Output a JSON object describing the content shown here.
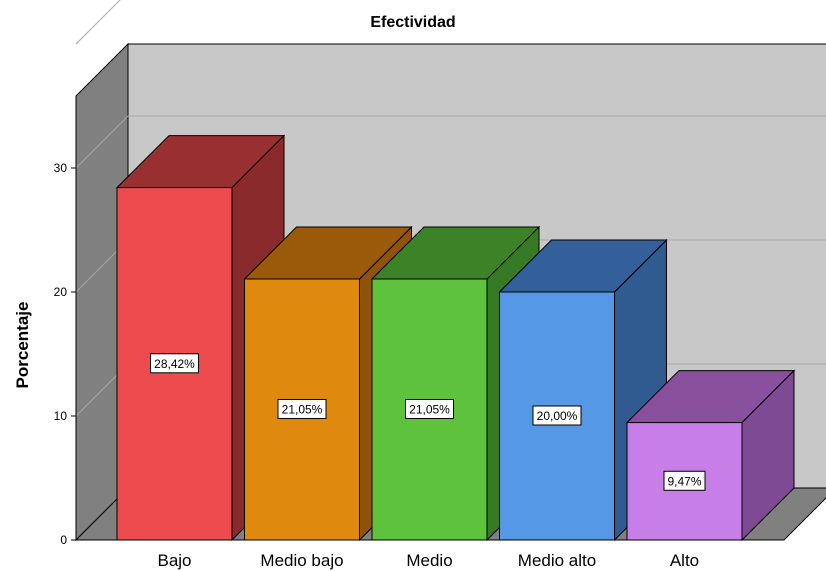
{
  "chart_data": {
    "type": "bar",
    "title": "Efectividad",
    "xlabel": "",
    "ylabel": "Porcentaje",
    "categories": [
      "Bajo",
      "Medio bajo",
      "Medio",
      "Medio alto",
      "Alto"
    ],
    "values": [
      28.42,
      21.05,
      21.05,
      20.0,
      9.47
    ],
    "data_labels": [
      "28,42%",
      "21,05%",
      "21,05%",
      "20,00%",
      "9,47%"
    ],
    "ylim": [
      0,
      30
    ],
    "yticks": [
      0,
      10,
      20,
      30
    ],
    "grid": true,
    "style": "3d",
    "colors": {
      "front": [
        "#ee4b4f",
        "#e0890f",
        "#5ec23c",
        "#5599e6",
        "#c77ee6"
      ],
      "side": [
        "#8a2a2d",
        "#8f5307",
        "#367a25",
        "#2f5b90",
        "#7d4a93"
      ],
      "top": [
        "#982f31",
        "#9a5a09",
        "#3c8328",
        "#33609a",
        "#874f9c"
      ],
      "back_wall": "#c8c8c8",
      "left_wall": "#808080",
      "floor": "#808080"
    }
  }
}
